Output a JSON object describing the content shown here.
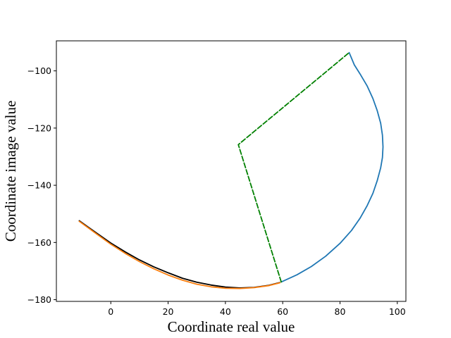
{
  "chart_data": {
    "type": "line",
    "title": "",
    "xlabel": "Coordinate real value",
    "ylabel": "Coordinate image value",
    "xlim": [
      -19,
      103
    ],
    "ylim": [
      -180.6,
      -89.5
    ],
    "x_ticks": [
      0,
      20,
      40,
      60,
      80,
      100
    ],
    "y_ticks": [
      -180,
      -160,
      -140,
      -120,
      -100
    ],
    "x_tick_labels": [
      "0",
      "20",
      "40",
      "60",
      "80",
      "100"
    ],
    "y_tick_labels": [
      "−180",
      "−160",
      "−140",
      "−120",
      "−100"
    ],
    "grid": false,
    "legend": "none",
    "series": [
      {
        "color": "#000000",
        "style": "solid",
        "x": [
          -11,
          -5,
          0,
          5,
          10,
          15,
          20,
          25,
          30,
          35,
          40,
          45,
          50,
          55,
          59
        ],
        "y": [
          -152.4,
          -156.7,
          -160.2,
          -163.3,
          -166.1,
          -168.5,
          -170.6,
          -172.5,
          -173.9,
          -174.9,
          -175.6,
          -175.9,
          -175.7,
          -175.0,
          -174.0
        ]
      },
      {
        "color": "#ff7f0e",
        "style": "solid",
        "x": [
          -11,
          -5,
          0,
          5,
          10,
          15,
          20,
          25,
          30,
          35,
          40,
          45,
          50,
          55,
          59
        ],
        "y": [
          -152.6,
          -157.0,
          -160.6,
          -163.8,
          -166.7,
          -169.2,
          -171.4,
          -173.2,
          -174.6,
          -175.5,
          -176.0,
          -176.1,
          -175.8,
          -175.1,
          -174.1
        ]
      },
      {
        "color": "#1f77b4",
        "style": "solid",
        "x": [
          59.5,
          65,
          70,
          75,
          80,
          84,
          87,
          89.5,
          91.5,
          93,
          94.2,
          94.8,
          95,
          94.8,
          94.2,
          93,
          91.5,
          89.5,
          87,
          85,
          83.2
        ],
        "y": [
          -173.8,
          -171.3,
          -168.4,
          -164.8,
          -160.3,
          -155.8,
          -151.5,
          -147.1,
          -142.8,
          -138.4,
          -133.9,
          -130.3,
          -126.6,
          -122.5,
          -118.3,
          -113.9,
          -109.7,
          -105.3,
          -101.1,
          -97.9,
          -93.6
        ]
      },
      {
        "color": "#008000",
        "style": "dashed",
        "x": [
          59.5,
          44.5,
          83.2
        ],
        "y": [
          -173.8,
          -125.8,
          -93.6
        ]
      }
    ]
  }
}
